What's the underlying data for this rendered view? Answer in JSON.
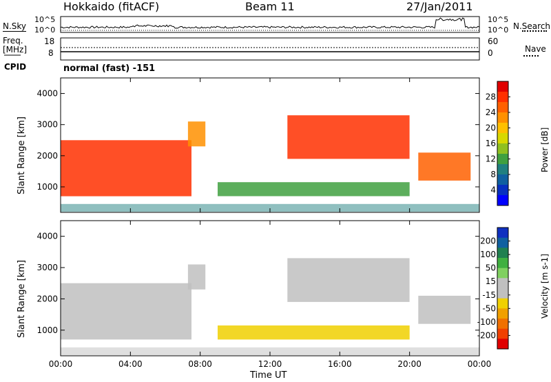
{
  "header": {
    "station": "Hokkaido (fitACF)",
    "beam": "Beam 11",
    "date": "27/Jan/2011"
  },
  "noise_panel": {
    "left_label": "N.Sky",
    "right_label": "N.Search",
    "left_ticks": [
      "10^5",
      "10^0"
    ],
    "right_ticks": [
      "10^5",
      "10^0"
    ]
  },
  "freq_panel": {
    "left_label_line1": "Freq.",
    "left_label_line2": "[MHz]",
    "left_ticks": [
      "18",
      "8"
    ],
    "right_label": "Nave",
    "right_ticks": [
      "60",
      "0"
    ],
    "cpid_label": "CPID",
    "mode_text": "normal (fast) -151"
  },
  "power_panel": {
    "ylabel": "Slant Range [km]",
    "yticks": [
      "4000",
      "3000",
      "2000",
      "1000"
    ],
    "colorbar_label": "Power [dB]",
    "colorbar_ticks": [
      "28",
      "24",
      "20",
      "16",
      "12",
      "8",
      "4"
    ],
    "colorbar_colors": [
      "#e00000",
      "#ff3000",
      "#ff6000",
      "#ff9000",
      "#ffc000",
      "#d8d800",
      "#90c020",
      "#40a040",
      "#208080",
      "#1060a0",
      "#0830c0",
      "#0000ff"
    ]
  },
  "velocity_panel": {
    "ylabel": "Slant Range [km]",
    "yticks": [
      "4000",
      "3000",
      "2000",
      "1000"
    ],
    "colorbar_label": "Velocity [m s-1]",
    "colorbar_ticks": [
      "200",
      "100",
      "50",
      "15",
      "-15",
      "-50",
      "-100",
      "-200"
    ],
    "colorbar_colors": [
      "#1030c0",
      "#1060a0",
      "#208050",
      "#40b040",
      "#80d060",
      "#c0c0c0",
      "#c0c0c0",
      "#f0d000",
      "#f0a000",
      "#f07000",
      "#f04000",
      "#e00000"
    ]
  },
  "xaxis": {
    "ticks": [
      "00:00",
      "04:00",
      "08:00",
      "12:00",
      "16:00",
      "20:00",
      "00:00"
    ],
    "label": "Time UT"
  },
  "chart_data": {
    "type": "heatmap",
    "title": "Hokkaido (fitACF)  Beam 11  27/Jan/2011",
    "xlabel": "Time UT",
    "ylabel": "Slant Range [km]",
    "xlim": [
      "00:00",
      "00:00"
    ],
    "ylim": [
      180,
      4500
    ],
    "panels": [
      "Power [dB]",
      "Velocity [m s-1]"
    ],
    "power_range_db": [
      0,
      30
    ],
    "velocity_range_ms": [
      -200,
      200
    ],
    "echo_regions": [
      {
        "time_start_h": 0.0,
        "time_end_h": 7.5,
        "range_start_km": 700,
        "range_end_km": 2500,
        "power_db": 28,
        "velocity_ms": 0
      },
      {
        "time_start_h": 7.3,
        "time_end_h": 8.3,
        "range_start_km": 2300,
        "range_end_km": 3100,
        "power_db": 22,
        "velocity_ms": 0
      },
      {
        "time_start_h": 13.0,
        "time_end_h": 20.0,
        "range_start_km": 1900,
        "range_end_km": 3300,
        "power_db": 26,
        "velocity_ms": 0
      },
      {
        "time_start_h": 20.5,
        "time_end_h": 23.5,
        "range_start_km": 1200,
        "range_end_km": 2100,
        "power_db": 24,
        "velocity_ms": 0
      },
      {
        "time_start_h": 9.0,
        "time_end_h": 20.0,
        "range_start_km": 700,
        "range_end_km": 1150,
        "power_db": 12,
        "velocity_ms": -50
      },
      {
        "time_start_h": 0.0,
        "time_end_h": 24.0,
        "range_start_km": 200,
        "range_end_km": 450,
        "power_db": 8,
        "velocity_ms": 0
      }
    ]
  }
}
